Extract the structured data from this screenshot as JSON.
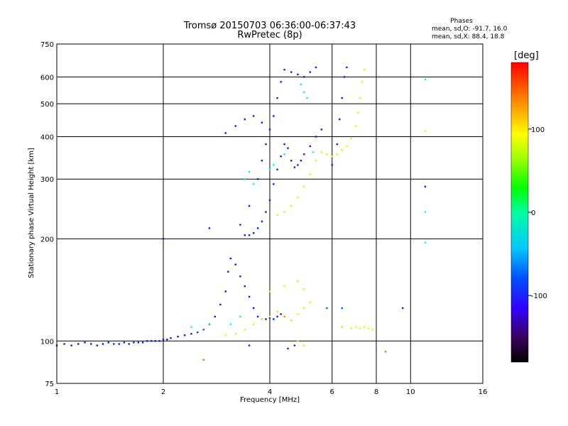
{
  "chart_data": {
    "type": "scatter",
    "title": "Tromsø 20150703 06:36:00-06:37:43",
    "subtitle": "RwPretec (8p)",
    "xlabel": "Frequency [MHz]",
    "ylabel": "Stationary phase Virtual Height [km]",
    "x_scale": "log",
    "y_scale": "log",
    "xlim": [
      1,
      16
    ],
    "ylim": [
      75,
      750
    ],
    "x_ticks": [
      1,
      2,
      4,
      6,
      8,
      10,
      16
    ],
    "y_ticks": [
      75,
      100,
      200,
      300,
      400,
      500,
      600,
      750
    ],
    "grid": true,
    "stats": {
      "heading": "Phases",
      "line_o": "mean, sd,O: -91.7, 16.0",
      "line_x": "mean, sd,X:  88.4, 18.8"
    },
    "colorbar": {
      "label": "[deg]",
      "range": [
        -180,
        180
      ],
      "ticks": [
        100,
        0,
        -100
      ],
      "colormap": "rainbow"
    },
    "series": [
      {
        "points": [
          [
            1.0,
            97,
            -100
          ],
          [
            1.05,
            98,
            -100
          ],
          [
            1.1,
            97,
            -100
          ],
          [
            1.15,
            98,
            -100
          ],
          [
            1.2,
            99,
            -100
          ],
          [
            1.25,
            98,
            -100
          ],
          [
            1.3,
            97,
            -100
          ],
          [
            1.35,
            98,
            -100
          ],
          [
            1.4,
            99,
            -100
          ],
          [
            1.45,
            98,
            -100
          ],
          [
            1.5,
            98,
            -100
          ],
          [
            1.55,
            99,
            -100
          ],
          [
            1.6,
            98,
            -100
          ],
          [
            1.65,
            99,
            -100
          ],
          [
            1.7,
            99,
            -100
          ],
          [
            1.75,
            99,
            -100
          ],
          [
            1.8,
            100,
            -100
          ],
          [
            1.85,
            100,
            -100
          ],
          [
            1.9,
            100,
            -100
          ],
          [
            1.95,
            100,
            -100
          ],
          [
            2.0,
            101,
            -100
          ],
          [
            2.05,
            101,
            -100
          ],
          [
            2.1,
            102,
            -100
          ],
          [
            2.2,
            103,
            -100
          ],
          [
            2.3,
            104,
            -100
          ],
          [
            2.4,
            105,
            -100
          ],
          [
            2.5,
            106,
            -90
          ],
          [
            2.6,
            108,
            -80
          ],
          [
            2.7,
            112,
            -60
          ],
          [
            2.8,
            118,
            -100
          ],
          [
            2.9,
            128,
            -100
          ],
          [
            3.0,
            140,
            -100
          ],
          [
            3.05,
            160,
            -100
          ],
          [
            3.1,
            175,
            -100
          ],
          [
            3.2,
            168,
            -100
          ],
          [
            3.3,
            155,
            -100
          ],
          [
            3.4,
            145,
            -100
          ],
          [
            3.5,
            135,
            -100
          ],
          [
            3.6,
            125,
            -100
          ],
          [
            3.7,
            118,
            -100
          ],
          [
            3.8,
            116,
            -100
          ],
          [
            3.9,
            116,
            -100
          ],
          [
            4.0,
            117,
            -100
          ],
          [
            4.1,
            116,
            -100
          ],
          [
            4.2,
            118,
            -100
          ],
          [
            4.3,
            120,
            -100
          ],
          [
            3.4,
            205,
            -100
          ],
          [
            3.5,
            205,
            -100
          ],
          [
            3.6,
            208,
            -100
          ],
          [
            3.7,
            215,
            -100
          ],
          [
            3.8,
            225,
            -100
          ],
          [
            3.9,
            240,
            -100
          ],
          [
            4.0,
            260,
            -100
          ],
          [
            4.1,
            290,
            -100
          ],
          [
            4.2,
            320,
            -100
          ],
          [
            4.3,
            350,
            -100
          ],
          [
            4.4,
            380,
            -100
          ],
          [
            4.5,
            370,
            -100
          ],
          [
            4.6,
            340,
            -100
          ],
          [
            4.7,
            325,
            -100
          ],
          [
            4.8,
            330,
            -100
          ],
          [
            4.9,
            340,
            -100
          ],
          [
            5.0,
            355,
            -100
          ],
          [
            5.2,
            375,
            -100
          ],
          [
            5.4,
            400,
            -100
          ],
          [
            5.6,
            420,
            -100
          ],
          [
            3.3,
            220,
            -100
          ],
          [
            3.5,
            250,
            -100
          ],
          [
            3.7,
            300,
            -100
          ],
          [
            3.8,
            340,
            -100
          ],
          [
            3.9,
            380,
            -100
          ],
          [
            4.0,
            420,
            -100
          ],
          [
            4.1,
            460,
            -100
          ],
          [
            4.2,
            520,
            -100
          ],
          [
            4.3,
            580,
            -100
          ],
          [
            4.4,
            630,
            -100
          ],
          [
            4.6,
            620,
            -100
          ],
          [
            4.8,
            610,
            -100
          ],
          [
            5.0,
            600,
            -100
          ],
          [
            5.2,
            620,
            -100
          ],
          [
            5.4,
            640,
            -100
          ],
          [
            6.0,
            330,
            -100
          ],
          [
            6.2,
            380,
            -100
          ],
          [
            6.3,
            450,
            -100
          ],
          [
            6.4,
            520,
            -100
          ],
          [
            6.5,
            600,
            -100
          ],
          [
            6.6,
            640,
            -100
          ],
          [
            3.0,
            410,
            -100
          ],
          [
            3.2,
            430,
            -100
          ],
          [
            3.4,
            450,
            -100
          ],
          [
            3.6,
            460,
            -100
          ],
          [
            3.8,
            440,
            -100
          ],
          [
            2.0,
            200,
            -100
          ],
          [
            2.7,
            215,
            -100
          ],
          [
            4.5,
            95,
            -100
          ],
          [
            4.7,
            97,
            -100
          ],
          [
            3.5,
            97,
            -100
          ]
        ]
      },
      {
        "points": [
          [
            4.2,
            235,
            95
          ],
          [
            4.4,
            240,
            95
          ],
          [
            4.6,
            250,
            95
          ],
          [
            4.8,
            265,
            95
          ],
          [
            5.0,
            285,
            95
          ],
          [
            5.2,
            310,
            95
          ],
          [
            5.4,
            340,
            95
          ],
          [
            5.6,
            360,
            95
          ],
          [
            5.8,
            355,
            95
          ],
          [
            6.0,
            350,
            95
          ],
          [
            6.2,
            355,
            95
          ],
          [
            6.4,
            365,
            95
          ],
          [
            6.6,
            375,
            95
          ],
          [
            6.8,
            395,
            95
          ],
          [
            7.0,
            430,
            95
          ],
          [
            7.1,
            470,
            95
          ],
          [
            7.2,
            520,
            95
          ],
          [
            7.3,
            580,
            95
          ],
          [
            7.4,
            630,
            95
          ],
          [
            3.0,
            104,
            95
          ],
          [
            3.2,
            105,
            95
          ],
          [
            3.4,
            108,
            95
          ],
          [
            3.6,
            112,
            95
          ],
          [
            3.8,
            116,
            95
          ],
          [
            4.0,
            118,
            95
          ],
          [
            4.2,
            122,
            120
          ],
          [
            4.4,
            118,
            140
          ],
          [
            4.6,
            115,
            120
          ],
          [
            4.8,
            120,
            100
          ],
          [
            5.0,
            125,
            95
          ],
          [
            5.2,
            130,
            95
          ],
          [
            4.0,
            140,
            95
          ],
          [
            4.4,
            145,
            95
          ],
          [
            4.8,
            150,
            95
          ],
          [
            5.0,
            142,
            95
          ],
          [
            4.8,
            100,
            95
          ],
          [
            5.0,
            97,
            95
          ],
          [
            6.8,
            109,
            100
          ],
          [
            7.0,
            110,
            100
          ],
          [
            7.2,
            109,
            100
          ],
          [
            7.4,
            110,
            100
          ],
          [
            7.6,
            109,
            100
          ],
          [
            7.8,
            108,
            100
          ],
          [
            6.4,
            110,
            120
          ],
          [
            11.0,
            415,
            100
          ],
          [
            2.6,
            88,
            150
          ],
          [
            8.5,
            93,
            150
          ],
          [
            11.0,
            590,
            100
          ]
        ]
      },
      {
        "points": [
          [
            4.9,
            570,
            -10
          ],
          [
            5.0,
            540,
            -10
          ],
          [
            5.1,
            520,
            -10
          ],
          [
            4.0,
            320,
            -20
          ],
          [
            3.5,
            315,
            -10
          ],
          [
            3.4,
            300,
            -20
          ],
          [
            3.6,
            290,
            -20
          ],
          [
            3.1,
            112,
            -30
          ],
          [
            3.3,
            118,
            -30
          ],
          [
            2.4,
            110,
            -30
          ],
          [
            5.3,
            360,
            -30
          ],
          [
            11.0,
            590,
            -30
          ],
          [
            11.0,
            195,
            -30
          ],
          [
            11.0,
            240,
            -30
          ],
          [
            11.0,
            285,
            -100
          ],
          [
            9.5,
            125,
            -100
          ],
          [
            6.4,
            125,
            -80
          ],
          [
            5.8,
            125,
            -80
          ],
          [
            4.4,
            355,
            -10
          ],
          [
            4.1,
            330,
            -10
          ]
        ]
      }
    ]
  }
}
